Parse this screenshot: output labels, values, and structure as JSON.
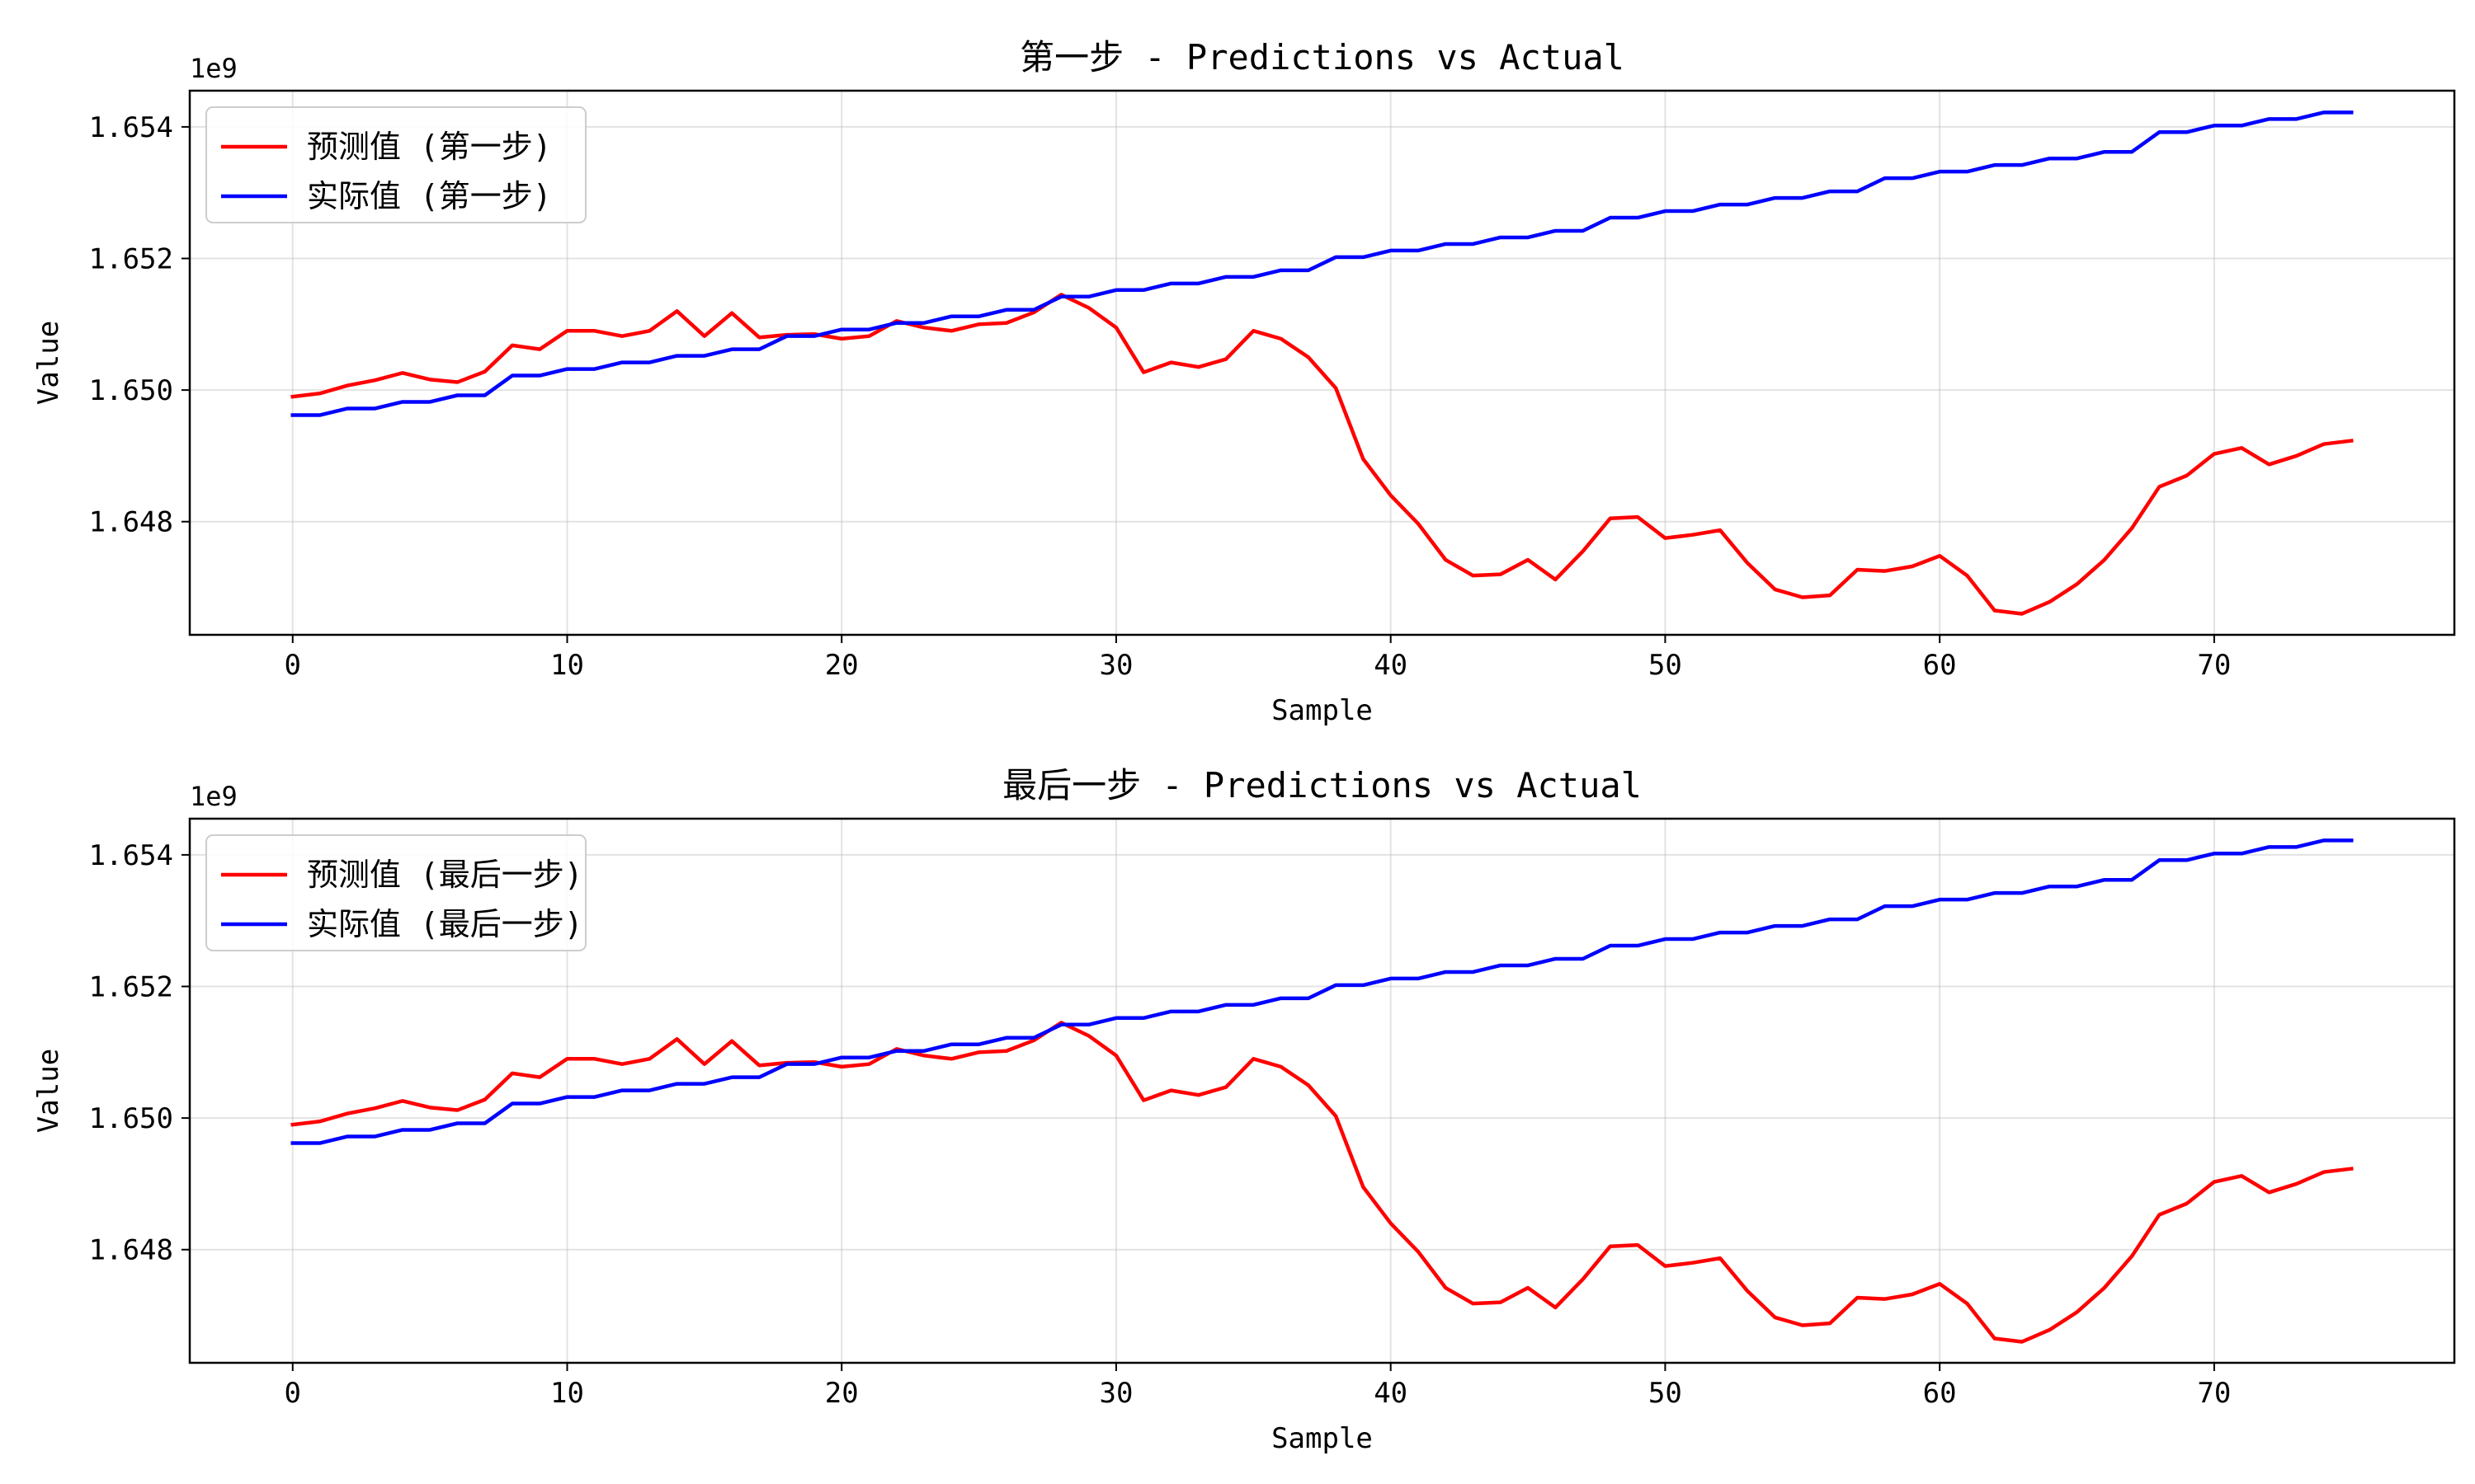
{
  "chart_data": [
    {
      "type": "line",
      "title": "第一步 - Predictions vs Actual",
      "xlabel": "Sample",
      "ylabel": "Value",
      "y_offset_label": "1e9",
      "xlim": [
        -3.75,
        78.75
      ],
      "ylim": [
        1.64628,
        1.65455
      ],
      "xticks": [
        0,
        10,
        20,
        30,
        40,
        50,
        60,
        70
      ],
      "yticks": [
        1.648,
        1.65,
        1.652,
        1.654
      ],
      "ytick_labels": [
        "1.648",
        "1.650",
        "1.652",
        "1.654"
      ],
      "grid": true,
      "legend_position": "upper-left",
      "series": [
        {
          "name": "预测值 (第一步)",
          "color": "#ff0000",
          "values": [
            1.6499,
            1.64995,
            1.65007,
            1.65015,
            1.65026,
            1.65016,
            1.65012,
            1.65028,
            1.65068,
            1.65062,
            1.6509,
            1.6509,
            1.65082,
            1.6509,
            1.6512,
            1.65082,
            1.65117,
            1.6508,
            1.65084,
            1.65085,
            1.65078,
            1.65082,
            1.65105,
            1.65095,
            1.6509,
            1.651,
            1.65102,
            1.65118,
            1.65145,
            1.65125,
            1.65095,
            1.65027,
            1.65042,
            1.65035,
            1.65047,
            1.6509,
            1.65078,
            1.6505,
            1.65003,
            1.64895,
            1.6484,
            1.64797,
            1.64742,
            1.64718,
            1.6472,
            1.64742,
            1.64712,
            1.64755,
            1.64805,
            1.64807,
            1.64775,
            1.6478,
            1.64787,
            1.64737,
            1.64697,
            1.64685,
            1.64688,
            1.64727,
            1.64725,
            1.64732,
            1.64748,
            1.64718,
            1.64665,
            1.6466,
            1.64678,
            1.64705,
            1.64742,
            1.6479,
            1.64853,
            1.6487,
            1.64903,
            1.64912,
            1.64887,
            1.649,
            1.64918,
            1.64923
          ]
        },
        {
          "name": "实际值 (第一步)",
          "color": "#0000ff",
          "values": [
            1.64962,
            1.64962,
            1.64972,
            1.64972,
            1.64982,
            1.64982,
            1.64992,
            1.64992,
            1.65022,
            1.65022,
            1.65032,
            1.65032,
            1.65042,
            1.65042,
            1.65052,
            1.65052,
            1.65062,
            1.65062,
            1.65082,
            1.65082,
            1.65092,
            1.65092,
            1.65102,
            1.65102,
            1.65112,
            1.65112,
            1.65122,
            1.65122,
            1.65142,
            1.65142,
            1.65152,
            1.65152,
            1.65162,
            1.65162,
            1.65172,
            1.65172,
            1.65182,
            1.65182,
            1.65202,
            1.65202,
            1.65212,
            1.65212,
            1.65222,
            1.65222,
            1.65232,
            1.65232,
            1.65242,
            1.65242,
            1.65262,
            1.65262,
            1.65272,
            1.65272,
            1.65282,
            1.65282,
            1.65292,
            1.65292,
            1.65302,
            1.65302,
            1.65322,
            1.65322,
            1.65332,
            1.65332,
            1.65342,
            1.65342,
            1.65352,
            1.65352,
            1.65362,
            1.65362,
            1.65392,
            1.65392,
            1.65402,
            1.65402,
            1.65412,
            1.65412,
            1.65422,
            1.65422
          ]
        }
      ]
    },
    {
      "type": "line",
      "title": "最后一步 - Predictions vs Actual",
      "xlabel": "Sample",
      "ylabel": "Value",
      "y_offset_label": "1e9",
      "xlim": [
        -3.75,
        78.75
      ],
      "ylim": [
        1.64628,
        1.65455
      ],
      "xticks": [
        0,
        10,
        20,
        30,
        40,
        50,
        60,
        70
      ],
      "yticks": [
        1.648,
        1.65,
        1.652,
        1.654
      ],
      "ytick_labels": [
        "1.648",
        "1.650",
        "1.652",
        "1.654"
      ],
      "grid": true,
      "legend_position": "upper-left",
      "series": [
        {
          "name": "预测值 (最后一步)",
          "color": "#ff0000",
          "values": [
            1.6499,
            1.64995,
            1.65007,
            1.65015,
            1.65026,
            1.65016,
            1.65012,
            1.65028,
            1.65068,
            1.65062,
            1.6509,
            1.6509,
            1.65082,
            1.6509,
            1.6512,
            1.65082,
            1.65117,
            1.6508,
            1.65084,
            1.65085,
            1.65078,
            1.65082,
            1.65105,
            1.65095,
            1.6509,
            1.651,
            1.65102,
            1.65118,
            1.65145,
            1.65125,
            1.65095,
            1.65027,
            1.65042,
            1.65035,
            1.65047,
            1.6509,
            1.65078,
            1.6505,
            1.65003,
            1.64895,
            1.6484,
            1.64797,
            1.64742,
            1.64718,
            1.6472,
            1.64742,
            1.64712,
            1.64755,
            1.64805,
            1.64807,
            1.64775,
            1.6478,
            1.64787,
            1.64737,
            1.64697,
            1.64685,
            1.64688,
            1.64727,
            1.64725,
            1.64732,
            1.64748,
            1.64718,
            1.64665,
            1.6466,
            1.64678,
            1.64705,
            1.64742,
            1.6479,
            1.64853,
            1.6487,
            1.64903,
            1.64912,
            1.64887,
            1.649,
            1.64918,
            1.64923
          ]
        },
        {
          "name": "实际值 (最后一步)",
          "color": "#0000ff",
          "values": [
            1.64962,
            1.64962,
            1.64972,
            1.64972,
            1.64982,
            1.64982,
            1.64992,
            1.64992,
            1.65022,
            1.65022,
            1.65032,
            1.65032,
            1.65042,
            1.65042,
            1.65052,
            1.65052,
            1.65062,
            1.65062,
            1.65082,
            1.65082,
            1.65092,
            1.65092,
            1.65102,
            1.65102,
            1.65112,
            1.65112,
            1.65122,
            1.65122,
            1.65142,
            1.65142,
            1.65152,
            1.65152,
            1.65162,
            1.65162,
            1.65172,
            1.65172,
            1.65182,
            1.65182,
            1.65202,
            1.65202,
            1.65212,
            1.65212,
            1.65222,
            1.65222,
            1.65232,
            1.65232,
            1.65242,
            1.65242,
            1.65262,
            1.65262,
            1.65272,
            1.65272,
            1.65282,
            1.65282,
            1.65292,
            1.65292,
            1.65302,
            1.65302,
            1.65322,
            1.65322,
            1.65332,
            1.65332,
            1.65342,
            1.65342,
            1.65352,
            1.65352,
            1.65362,
            1.65362,
            1.65392,
            1.65392,
            1.65402,
            1.65402,
            1.65412,
            1.65412,
            1.65422,
            1.65422
          ]
        }
      ]
    }
  ]
}
